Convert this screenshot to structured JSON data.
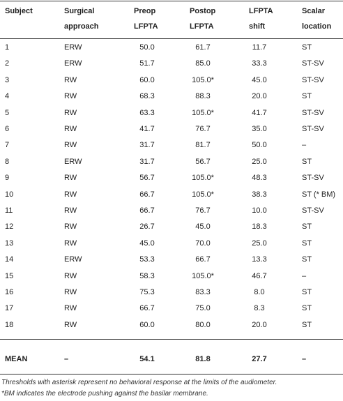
{
  "table": {
    "header": [
      [
        "Subject"
      ],
      [
        "Surgical",
        "approach"
      ],
      [
        "Preop",
        "LFPTA"
      ],
      [
        "Postop",
        "LFPTA"
      ],
      [
        "LFPTA",
        "shift"
      ],
      [
        "Scalar",
        "location"
      ]
    ],
    "rows": [
      [
        "1",
        "ERW",
        "50.0",
        "61.7",
        "11.7",
        "ST"
      ],
      [
        "2",
        "ERW",
        "51.7",
        "85.0",
        "33.3",
        "ST-SV"
      ],
      [
        "3",
        "RW",
        "60.0",
        "105.0*",
        "45.0",
        "ST-SV"
      ],
      [
        "4",
        "RW",
        "68.3",
        "88.3",
        "20.0",
        "ST"
      ],
      [
        "5",
        "RW",
        "63.3",
        "105.0*",
        "41.7",
        "ST-SV"
      ],
      [
        "6",
        "RW",
        "41.7",
        "76.7",
        "35.0",
        "ST-SV"
      ],
      [
        "7",
        "RW",
        "31.7",
        "81.7",
        "50.0",
        "–"
      ],
      [
        "8",
        "ERW",
        "31.7",
        "56.7",
        "25.0",
        "ST"
      ],
      [
        "9",
        "RW",
        "56.7",
        "105.0*",
        "48.3",
        "ST-SV"
      ],
      [
        "10",
        "RW",
        "66.7",
        "105.0*",
        "38.3",
        "ST (* BM)"
      ],
      [
        "11",
        "RW",
        "66.7",
        "76.7",
        "10.0",
        "ST-SV"
      ],
      [
        "12",
        "RW",
        "26.7",
        "45.0",
        "18.3",
        "ST"
      ],
      [
        "13",
        "RW",
        "45.0",
        "70.0",
        "25.0",
        "ST"
      ],
      [
        "14",
        "ERW",
        "53.3",
        "66.7",
        "13.3",
        "ST"
      ],
      [
        "15",
        "RW",
        "58.3",
        "105.0*",
        "46.7",
        "–"
      ],
      [
        "16",
        "RW",
        "75.3",
        "83.3",
        "8.0",
        "ST"
      ],
      [
        "17",
        "RW",
        "66.7",
        "75.0",
        "8.3",
        "ST"
      ],
      [
        "18",
        "RW",
        "60.0",
        "80.0",
        "20.0",
        "ST"
      ]
    ],
    "mean": [
      "MEAN",
      "–",
      "54.1",
      "81.8",
      "27.7",
      "–"
    ],
    "notes": [
      "Thresholds with asterisk represent no behavioral response at the limits of the audiometer.",
      "*BM indicates the electrode pushing against the basilar membrane."
    ]
  }
}
